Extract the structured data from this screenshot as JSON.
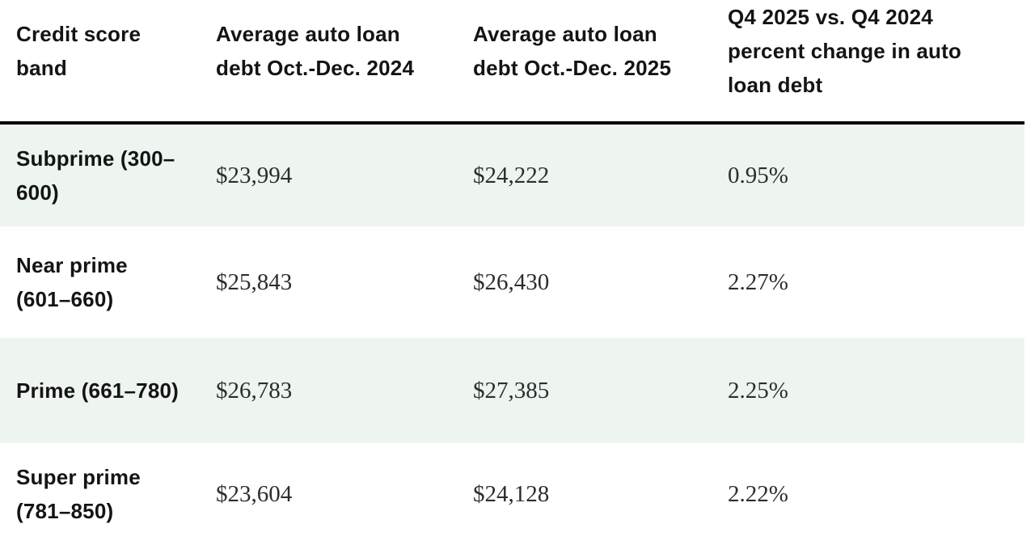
{
  "colors": {
    "stripe_row_background": "#eef4f0",
    "header_rule": "#000000",
    "header_text": "#141414",
    "value_text": "#2d2d2d",
    "page_background": "#ffffff"
  },
  "chart_data": {
    "type": "table",
    "title": "",
    "columns": [
      "Credit score band",
      "Average auto loan debt Oct.-Dec. 2024",
      "Average auto loan debt Oct.-Dec. 2025",
      "Q4 2025 vs. Q4 2024 percent change in auto loan debt"
    ],
    "rows": [
      [
        "Subprime (300–600)",
        "$23,994",
        "$24,222",
        "0.95%"
      ],
      [
        "Near prime (601–660)",
        "$25,843",
        "$26,430",
        "2.27%"
      ],
      [
        "Prime (661–780)",
        "$26,783",
        "$27,385",
        "2.25%"
      ],
      [
        "Super prime (781–850)",
        "$23,604",
        "$24,128",
        "2.22%"
      ]
    ],
    "categories": [
      "Subprime (300–600)",
      "Near prime (601–660)",
      "Prime (661–780)",
      "Super prime (781–850)"
    ],
    "series": [
      {
        "name": "Average auto loan debt Oct.-Dec. 2024",
        "values": [
          23994,
          25843,
          26783,
          23604
        ],
        "unit": "USD"
      },
      {
        "name": "Average auto loan debt Oct.-Dec. 2025",
        "values": [
          24222,
          26430,
          27385,
          24128
        ],
        "unit": "USD"
      },
      {
        "name": "Q4 2025 vs. Q4 2024 percent change in auto loan debt",
        "values": [
          0.95,
          2.27,
          2.25,
          2.22
        ],
        "unit": "%"
      }
    ],
    "layout": {
      "striped_rows": [
        0,
        2
      ],
      "header_rule_thickness_px": 4
    }
  }
}
